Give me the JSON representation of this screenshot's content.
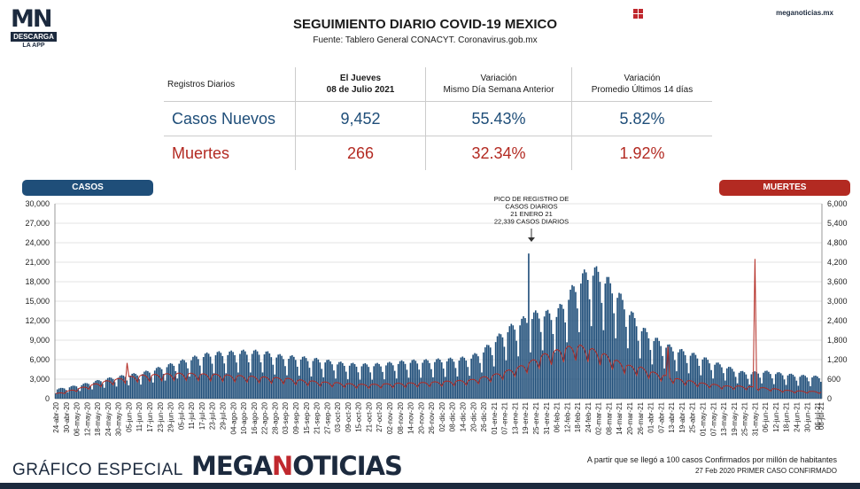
{
  "brand": {
    "logo_mn": "MN",
    "logo_descarga": "DESCARGA",
    "logo_app": "LA APP",
    "site": "meganoticias.mx"
  },
  "header": {
    "title": "SEGUIMIENTO DIARIO COVID-19 MEXICO",
    "subtitle": "Fuente: Tablero General CONACYT. Coronavirus.gob.mx"
  },
  "kpi_table": {
    "headers": [
      "Registros Diarios",
      "El Jueves\n08 de Julio 2021",
      "Variación\nMismo Día Semana Anterior",
      "Variación\nPromedio Últimos 14 días"
    ],
    "rows": [
      {
        "label": "Casos Nuevos",
        "value": "9,452",
        "var_week": "55.43%",
        "var_14": "5.82%"
      },
      {
        "label": "Muertes",
        "value": "266",
        "var_week": "32.34%",
        "var_14": "1.92%"
      }
    ]
  },
  "legend": {
    "casos": "CASOS",
    "muertes": "MUERTES"
  },
  "colors": {
    "casos": "#1f4e79",
    "muertes": "#b32a22",
    "navy": "#1c2a3e",
    "brand_red": "#c0282e"
  },
  "footer": {
    "left": "GRÁFICO ESPECIAL",
    "brand_a": "MEGA",
    "brand_b": "N",
    "brand_c": "OTICIAS",
    "note1": "A partir que se llegó a 100 casos Confirmados por millón de habitantes",
    "note2": "27 Feb 2020 PRIMER CASO CONFIRMADO"
  },
  "chart_data": {
    "type": "bar",
    "title": "",
    "left_axis": {
      "label": "CASOS",
      "ylim": [
        0,
        30000
      ],
      "ticks": [
        "0",
        "3,000",
        "6,000",
        "9,000",
        "12,000",
        "15,000",
        "18,000",
        "21,000",
        "24,000",
        "27,000",
        "30,000"
      ]
    },
    "right_axis": {
      "label": "MUERTES",
      "ylim": [
        0,
        6000
      ],
      "ticks": [
        "0",
        "600",
        "1,200",
        "1,800",
        "2,400",
        "3,000",
        "3,600",
        "4,200",
        "4,800",
        "5,400",
        "6,000"
      ]
    },
    "x_start": "24-abr-20",
    "x_end": "08-jul-21",
    "x_tick_labels": [
      "24-abr-20",
      "30-abr-20",
      "06-may-20",
      "12-may-20",
      "18-may-20",
      "24-may-20",
      "30-may-20",
      "05-jun-20",
      "11-jun-20",
      "17-jun-20",
      "23-jun-20",
      "29-jun-20",
      "05-jul-20",
      "11-jul-20",
      "17-jul-20",
      "23-jul-20",
      "29-jul-20",
      "04-ago-20",
      "10-ago-20",
      "16-ago-20",
      "22-ago-20",
      "28-ago-20",
      "03-sep-20",
      "09-sep-20",
      "15-sep-20",
      "21-sep-20",
      "27-sep-20",
      "03-oct-20",
      "09-oct-20",
      "15-oct-20",
      "21-oct-20",
      "27-oct-20",
      "02-nov-20",
      "08-nov-20",
      "14-nov-20",
      "20-nov-20",
      "26-nov-20",
      "02-dic-20",
      "08-dic-20",
      "14-dic-20",
      "20-dic-20",
      "26-dic-20",
      "01-ene-21",
      "07-ene-21",
      "13-ene-21",
      "19-ene-21",
      "25-ene-21",
      "31-ene-21",
      "06-feb-21",
      "12-feb-21",
      "18-feb-21",
      "24-feb-21",
      "02-mar-21",
      "08-mar-21",
      "14-mar-21",
      "20-mar-21",
      "26-mar-21",
      "01-abr-21",
      "07-abr-21",
      "13-abr-21",
      "19-abr-21",
      "25-abr-21",
      "01-may-21",
      "07-may-21",
      "13-may-21",
      "19-may-21",
      "25-may-21",
      "31-may-21",
      "06-jun-21",
      "12-jun-21",
      "18-jun-21",
      "24-jun-21",
      "30-jun-21",
      "06-jul-21",
      "08-jul-21"
    ],
    "series": [
      {
        "name": "CASOS",
        "type": "bar",
        "axis": "left",
        "weekly_average": [
          1300,
          1600,
          1900,
          2300,
          2700,
          3000,
          3300,
          3500,
          4000,
          4500,
          5000,
          5500,
          6000,
          6300,
          6300,
          6500,
          6500,
          6500,
          6000,
          5800,
          5700,
          5500,
          5300,
          5000,
          4800,
          4700,
          4700,
          4800,
          5000,
          5200,
          5200,
          5300,
          5400,
          5500,
          5700,
          6500,
          8000,
          9500,
          10500,
          11500,
          12000,
          11500,
          14000,
          16500,
          18000,
          17000,
          15000,
          12500,
          10000,
          8500,
          7500,
          6800,
          6300,
          5800,
          5000,
          4500,
          3800,
          3500,
          3800,
          3600,
          3400,
          3200,
          3100,
          3000,
          2800,
          2700,
          2700,
          2800,
          3000,
          3600,
          4000,
          4400,
          5100,
          6300
        ],
        "annotation": {
          "text": "PICO DE REGISTRO DE\nCASOS DIARIOS\n21 ENERO 21\n22,339 CASOS DIARIOS",
          "x": "21-ene-21",
          "y": 22339
        }
      },
      {
        "name": "MUERTES",
        "type": "line",
        "axis": "right",
        "weekly_average": [
          150,
          230,
          320,
          420,
          520,
          590,
          660,
          700,
          720,
          740,
          760,
          760,
          740,
          730,
          710,
          690,
          670,
          650,
          630,
          610,
          560,
          530,
          500,
          480,
          450,
          430,
          430,
          440,
          460,
          470,
          480,
          500,
          520,
          540,
          560,
          640,
          720,
          830,
          950,
          1120,
          1320,
          1440,
          1550,
          1600,
          1500,
          1350,
          1150,
          1000,
          950,
          800,
          700,
          600,
          540,
          470,
          430,
          380,
          380,
          360,
          330,
          300,
          250,
          230,
          220,
          210,
          180,
          180,
          160,
          150,
          160,
          170,
          180,
          210,
          230,
          240
        ],
        "spikes": [
          {
            "x": "04-jun-20",
            "y": 1100
          },
          {
            "x": "11-abr-21",
            "y": 1600
          },
          {
            "x": "31-may-21",
            "y": 4300
          }
        ]
      }
    ]
  }
}
